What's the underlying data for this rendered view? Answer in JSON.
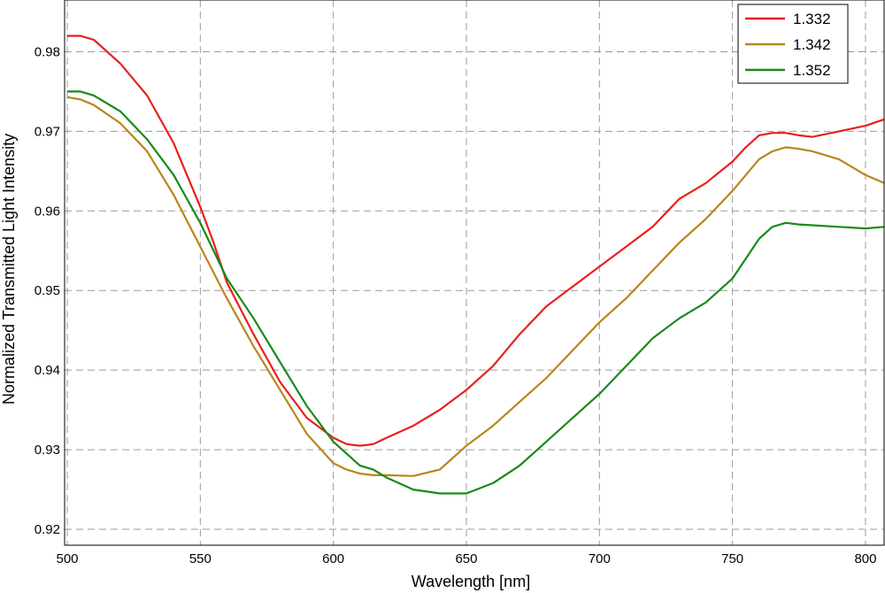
{
  "chart_data": {
    "type": "line",
    "xlabel": "Wavelength [nm]",
    "ylabel": "Normalized Transmitted Light Intensity",
    "xlim": [
      499,
      807
    ],
    "ylim": [
      0.918,
      0.9865
    ],
    "xticks": [
      500,
      550,
      600,
      650,
      700,
      750,
      800
    ],
    "yticks": [
      0.92,
      0.93,
      0.94,
      0.95,
      0.96,
      0.97,
      0.98
    ],
    "ytick_labels": [
      "0.92",
      "0.93",
      "0.94",
      "0.95",
      "0.96",
      "0.97",
      "0.98"
    ],
    "grid": true,
    "legend_position": "top-right",
    "series": [
      {
        "name": "1.332",
        "color": "#e8201c",
        "x": [
          500,
          505,
          510,
          520,
          530,
          540,
          550,
          555,
          560,
          570,
          580,
          590,
          600,
          605,
          610,
          615,
          620,
          630,
          640,
          650,
          660,
          670,
          680,
          690,
          700,
          710,
          720,
          730,
          740,
          750,
          755,
          760,
          765,
          770,
          775,
          780,
          790,
          800,
          807
        ],
        "y": [
          0.982,
          0.982,
          0.9815,
          0.9785,
          0.9745,
          0.9685,
          0.9605,
          0.956,
          0.951,
          0.9445,
          0.9385,
          0.934,
          0.9315,
          0.9307,
          0.9305,
          0.9307,
          0.9315,
          0.933,
          0.935,
          0.9375,
          0.9405,
          0.9445,
          0.948,
          0.9505,
          0.953,
          0.9555,
          0.958,
          0.9615,
          0.9635,
          0.9662,
          0.968,
          0.9695,
          0.9698,
          0.9698,
          0.9695,
          0.9693,
          0.97,
          0.9707,
          0.9715
        ]
      },
      {
        "name": "1.342",
        "color": "#b8861c",
        "x": [
          500,
          505,
          510,
          520,
          530,
          540,
          550,
          560,
          570,
          580,
          590,
          600,
          605,
          610,
          615,
          620,
          630,
          640,
          650,
          660,
          670,
          680,
          690,
          700,
          710,
          720,
          730,
          740,
          750,
          755,
          760,
          765,
          770,
          775,
          780,
          790,
          800,
          807
        ],
        "y": [
          0.9743,
          0.974,
          0.9733,
          0.971,
          0.9675,
          0.962,
          0.9555,
          0.949,
          0.943,
          0.9375,
          0.932,
          0.9283,
          0.9275,
          0.927,
          0.9268,
          0.9268,
          0.9267,
          0.9275,
          0.9305,
          0.933,
          0.936,
          0.939,
          0.9425,
          0.946,
          0.949,
          0.9525,
          0.956,
          0.959,
          0.9625,
          0.9645,
          0.9665,
          0.9675,
          0.968,
          0.9678,
          0.9675,
          0.9665,
          0.9645,
          0.9635
        ]
      },
      {
        "name": "1.352",
        "color": "#188a18",
        "x": [
          500,
          505,
          510,
          520,
          530,
          540,
          550,
          560,
          570,
          580,
          590,
          600,
          605,
          610,
          615,
          620,
          630,
          640,
          650,
          660,
          670,
          680,
          690,
          700,
          710,
          720,
          730,
          740,
          750,
          755,
          760,
          765,
          770,
          775,
          780,
          790,
          800,
          807
        ],
        "y": [
          0.975,
          0.975,
          0.9745,
          0.9725,
          0.969,
          0.9645,
          0.9585,
          0.9515,
          0.9465,
          0.941,
          0.9355,
          0.931,
          0.9295,
          0.928,
          0.9275,
          0.9265,
          0.925,
          0.9245,
          0.9245,
          0.9258,
          0.928,
          0.931,
          0.934,
          0.937,
          0.9405,
          0.944,
          0.9465,
          0.9485,
          0.9515,
          0.954,
          0.9565,
          0.958,
          0.9585,
          0.9583,
          0.9582,
          0.958,
          0.9578,
          0.958
        ]
      }
    ]
  }
}
